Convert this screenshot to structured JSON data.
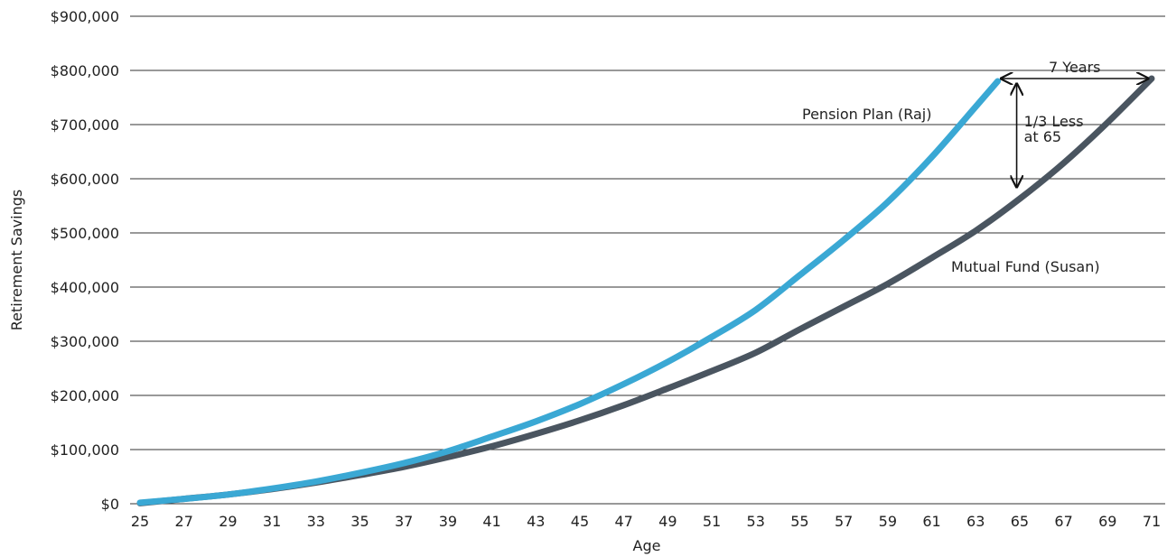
{
  "chart_data": {
    "type": "line",
    "title": "",
    "xlabel": "Age",
    "ylabel": "Retirement Savings",
    "xlim": [
      25,
      71
    ],
    "ylim": [
      0,
      900000
    ],
    "grid": true,
    "x_ticks": [
      25,
      27,
      29,
      31,
      33,
      35,
      37,
      39,
      41,
      43,
      45,
      47,
      49,
      51,
      53,
      55,
      57,
      59,
      61,
      63,
      65,
      67,
      69,
      71
    ],
    "y_ticks": [
      {
        "value": 0,
        "label": "$0"
      },
      {
        "value": 100000,
        "label": "$100,000"
      },
      {
        "value": 200000,
        "label": "$200,000"
      },
      {
        "value": 300000,
        "label": "$300,000"
      },
      {
        "value": 400000,
        "label": "$400,000"
      },
      {
        "value": 500000,
        "label": "$500,000"
      },
      {
        "value": 600000,
        "label": "$600,000"
      },
      {
        "value": 700000,
        "label": "$700,000"
      },
      {
        "value": 800000,
        "label": "$800,000"
      },
      {
        "value": 900000,
        "label": "$900,000"
      }
    ],
    "series": [
      {
        "name": "Pension Plan (Raj)",
        "color": "#3aa8d4",
        "x": [
          25,
          27,
          29,
          31,
          33,
          35,
          37,
          39,
          41,
          43,
          45,
          47,
          49,
          51,
          53,
          55,
          57,
          59,
          61,
          63,
          64
        ],
        "y": [
          2000,
          9000,
          17000,
          28000,
          41000,
          57000,
          75000,
          97000,
          124000,
          152000,
          184000,
          221000,
          262000,
          308000,
          358000,
          422000,
          487000,
          557000,
          640000,
          733000,
          780000
        ]
      },
      {
        "name": "Mutual Fund (Susan)",
        "color": "#4a5560",
        "x": [
          25,
          27,
          29,
          31,
          33,
          35,
          37,
          39,
          41,
          43,
          45,
          47,
          49,
          51,
          53,
          55,
          57,
          59,
          61,
          63,
          65,
          67,
          69,
          71
        ],
        "y": [
          1000,
          9000,
          17000,
          27000,
          39000,
          53000,
          68000,
          86000,
          106000,
          129000,
          154000,
          182000,
          213000,
          245000,
          279000,
          322000,
          364000,
          406000,
          454000,
          504000,
          563000,
          629000,
          704000,
          785000
        ]
      }
    ],
    "annotations": {
      "years_text": "7 Years",
      "less_line1": "1/3 Less",
      "less_line2": "at 65"
    }
  }
}
